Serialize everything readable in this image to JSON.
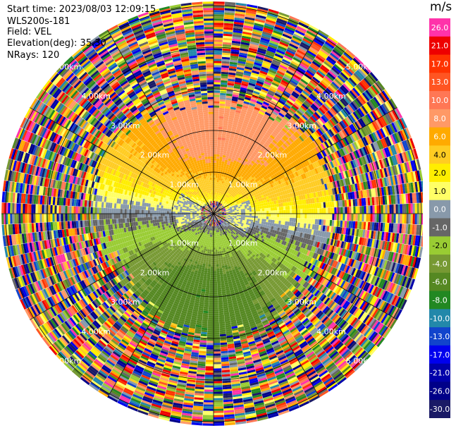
{
  "info": {
    "start_time": "Start time: 2023/08/03 12:09:15",
    "site": "WLS200s-181",
    "field": "Field: VEL",
    "elevation": "Elevation(deg): 35.30",
    "nrays": "NRays: 120"
  },
  "chart_data": {
    "type": "heatmap",
    "plot_kind": "PPI polar scan",
    "field": "VEL",
    "units": "m/s",
    "range_ring_labels": [
      "1.00km",
      "2.00km",
      "3.00km",
      "4.00km",
      "5.00km"
    ],
    "range_rings_km": [
      1,
      2,
      3,
      4,
      5
    ],
    "max_range_km": 5.1,
    "n_rays": 120,
    "n_gates": 100,
    "radial_lines_deg": [
      0,
      30,
      60,
      90,
      120,
      150,
      180,
      210,
      240,
      270,
      300,
      330
    ],
    "colorbar": {
      "ticks": [
        "26.0",
        "21.0",
        "17.0",
        "13.0",
        "10.0",
        "8.0",
        "6.0",
        "4.0",
        "2.0",
        "1.0",
        "0.0",
        "-1.0",
        "-2.0",
        "-4.0",
        "-6.0",
        "-8.0",
        "-10.0",
        "-13.0",
        "-17.0",
        "-21.0",
        "-26.0",
        "-30.0"
      ],
      "colors": [
        "#ff33aa",
        "#ee0000",
        "#ff3300",
        "#ff5522",
        "#ff7755",
        "#ff9966",
        "#ffaa00",
        "#ffcc22",
        "#ffee00",
        "#ffff66",
        "#8899aa",
        "#666666",
        "#99cc33",
        "#779933",
        "#558822",
        "#228822",
        "#2288aa",
        "#1144cc",
        "#0000ee",
        "#0000aa",
        "#000088",
        "#1a1a66"
      ]
    },
    "regions": [
      {
        "name": "near-range cluttered center",
        "from_km": 0,
        "to_km": 0.3,
        "value": "mixed"
      },
      {
        "name": "north half",
        "from_km": 0.3,
        "to_km": 2.6,
        "value_range": [
          1,
          8
        ]
      },
      {
        "name": "south half",
        "from_km": 0.3,
        "to_km": 2.6,
        "value_range": [
          -8,
          -1
        ]
      },
      {
        "name": "zero-velocity band along W-E",
        "value_range": [
          -1,
          1
        ]
      },
      {
        "name": "noise beyond 3 km",
        "from_km": 3.0,
        "to_km": 5.1,
        "value": "random"
      }
    ]
  }
}
